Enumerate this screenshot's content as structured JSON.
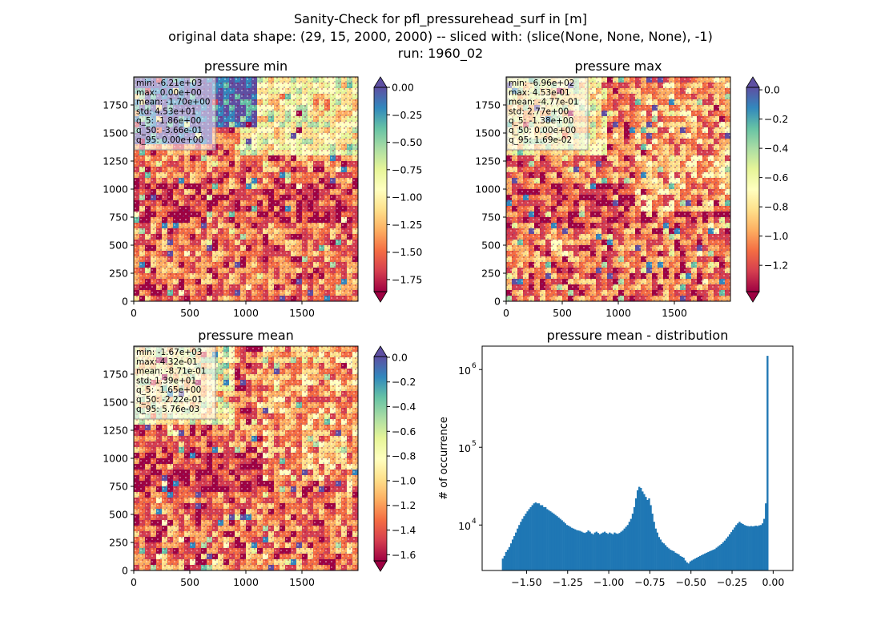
{
  "figure": {
    "title_lines": [
      "Sanity-Check for pfl_pressurehead_surf in [m]",
      "original data shape: (29, 15, 2000, 2000) -- sliced with: (slice(None, None, None), -1)",
      "run: 1960_02"
    ]
  },
  "colormap": [
    "#9e0142",
    "#d53e4f",
    "#f46d43",
    "#fdae61",
    "#fee08b",
    "#ffffbf",
    "#e6f598",
    "#abdda4",
    "#66c2a5",
    "#3288bd",
    "#5e4fa2"
  ],
  "chart_data": [
    {
      "type": "heatmap",
      "title": "pressure min",
      "x_ticks": [
        "0",
        "500",
        "1000",
        "1500"
      ],
      "y_ticks": [
        "0",
        "250",
        "500",
        "750",
        "1000",
        "1250",
        "1500",
        "1750"
      ],
      "xlim": [
        0,
        2000
      ],
      "ylim": [
        0,
        2000
      ],
      "color_range": [
        -1.86,
        0.0
      ],
      "colorbar_ticks": [
        "0.00",
        "−0.25",
        "−0.50",
        "−0.75",
        "−1.00",
        "−1.25",
        "−1.50",
        "−1.75"
      ],
      "colorbar_tick_values": [
        0.0,
        -0.25,
        -0.5,
        -0.75,
        -1.0,
        -1.25,
        -1.5,
        -1.75
      ],
      "colorbar_extend": "both",
      "stats": [
        "min: -6.21e+03",
        "max: 0.00e+00",
        "mean: -1.70e+00",
        "std: 4.53e+01",
        "q_5: -1.86e+00",
        "q_50: -3.66e-01",
        "q_95: 0.00e+00"
      ]
    },
    {
      "type": "heatmap",
      "title": "pressure max",
      "x_ticks": [
        "0",
        "500",
        "1000",
        "1500"
      ],
      "y_ticks": [
        "0",
        "250",
        "500",
        "750",
        "1000",
        "1250",
        "1500",
        "1750"
      ],
      "xlim": [
        0,
        2000
      ],
      "ylim": [
        0,
        2000
      ],
      "color_range": [
        -1.38,
        0.0169
      ],
      "colorbar_ticks": [
        "0.0",
        "−0.2",
        "−0.4",
        "−0.6",
        "−0.8",
        "−1.0",
        "−1.2"
      ],
      "colorbar_tick_values": [
        0.0,
        -0.2,
        -0.4,
        -0.6,
        -0.8,
        -1.0,
        -1.2
      ],
      "colorbar_extend": "both",
      "stats": [
        "min: -6.96e+02",
        "max: 4.53e-01",
        "mean: -4.77e-01",
        "std: 2.77e+00",
        "q_5: -1.38e+00",
        "q_50: 0.00e+00",
        "q_95: 1.69e-02"
      ]
    },
    {
      "type": "heatmap",
      "title": "pressure mean",
      "x_ticks": [
        "0",
        "500",
        "1000",
        "1500"
      ],
      "y_ticks": [
        "0",
        "250",
        "500",
        "750",
        "1000",
        "1250",
        "1500",
        "1750"
      ],
      "xlim": [
        0,
        2000
      ],
      "ylim": [
        0,
        2000
      ],
      "color_range": [
        -1.65,
        0.00576
      ],
      "colorbar_ticks": [
        "0.0",
        "−0.2",
        "−0.4",
        "−0.6",
        "−0.8",
        "−1.0",
        "−1.2",
        "−1.4",
        "−1.6"
      ],
      "colorbar_tick_values": [
        0.0,
        -0.2,
        -0.4,
        -0.6,
        -0.8,
        -1.0,
        -1.2,
        -1.4,
        -1.6
      ],
      "colorbar_extend": "both",
      "stats": [
        "min: -1.67e+03",
        "max: 4.32e-01",
        "mean: -8.71e-01",
        "std: 1.39e+01",
        "q_5: -1.65e+00",
        "q_50: -2.22e-01",
        "q_95: 5.76e-03"
      ]
    },
    {
      "type": "bar",
      "title": "pressure mean - distribution",
      "ylabel": "# of occurrence",
      "yscale": "log",
      "xlim": [
        -1.77,
        0.12
      ],
      "ylim": [
        2600,
        2000000
      ],
      "x_ticks": [
        "−1.50",
        "−1.25",
        "−1.00",
        "−0.75",
        "−0.50",
        "−0.25",
        "0.00"
      ],
      "x_tick_values": [
        -1.5,
        -1.25,
        -1.0,
        -0.75,
        -0.5,
        -0.25,
        0.0
      ],
      "y_ticks": [
        "10",
        "10",
        "10"
      ],
      "y_tick_exponents": [
        "4",
        "5",
        "6"
      ],
      "y_tick_values": [
        10000,
        100000,
        1000000
      ],
      "bar_color": "#1f77b4",
      "bin_width": 0.01,
      "bin_centers": [
        -1.645,
        -1.635,
        -1.625,
        -1.615,
        -1.605,
        -1.595,
        -1.585,
        -1.575,
        -1.565,
        -1.555,
        -1.545,
        -1.535,
        -1.525,
        -1.515,
        -1.505,
        -1.495,
        -1.485,
        -1.475,
        -1.465,
        -1.455,
        -1.445,
        -1.435,
        -1.425,
        -1.415,
        -1.405,
        -1.395,
        -1.385,
        -1.375,
        -1.365,
        -1.355,
        -1.345,
        -1.335,
        -1.325,
        -1.315,
        -1.305,
        -1.295,
        -1.285,
        -1.275,
        -1.265,
        -1.255,
        -1.245,
        -1.235,
        -1.225,
        -1.215,
        -1.205,
        -1.195,
        -1.185,
        -1.175,
        -1.165,
        -1.155,
        -1.145,
        -1.135,
        -1.125,
        -1.115,
        -1.105,
        -1.095,
        -1.085,
        -1.075,
        -1.065,
        -1.055,
        -1.045,
        -1.035,
        -1.025,
        -1.015,
        -1.005,
        -0.995,
        -0.985,
        -0.975,
        -0.965,
        -0.955,
        -0.945,
        -0.935,
        -0.925,
        -0.915,
        -0.905,
        -0.895,
        -0.885,
        -0.875,
        -0.865,
        -0.855,
        -0.845,
        -0.835,
        -0.825,
        -0.815,
        -0.805,
        -0.795,
        -0.785,
        -0.775,
        -0.765,
        -0.755,
        -0.745,
        -0.735,
        -0.725,
        -0.715,
        -0.705,
        -0.695,
        -0.685,
        -0.675,
        -0.665,
        -0.655,
        -0.645,
        -0.635,
        -0.625,
        -0.615,
        -0.605,
        -0.595,
        -0.585,
        -0.575,
        -0.565,
        -0.555,
        -0.545,
        -0.535,
        -0.525,
        -0.515,
        -0.505,
        -0.495,
        -0.485,
        -0.475,
        -0.465,
        -0.455,
        -0.445,
        -0.435,
        -0.425,
        -0.415,
        -0.405,
        -0.395,
        -0.385,
        -0.375,
        -0.365,
        -0.355,
        -0.345,
        -0.335,
        -0.325,
        -0.315,
        -0.305,
        -0.295,
        -0.285,
        -0.275,
        -0.265,
        -0.255,
        -0.245,
        -0.235,
        -0.225,
        -0.215,
        -0.205,
        -0.195,
        -0.185,
        -0.175,
        -0.165,
        -0.155,
        -0.145,
        -0.135,
        -0.125,
        -0.115,
        -0.105,
        -0.095,
        -0.085,
        -0.075,
        -0.065,
        -0.055,
        -0.045,
        -0.035,
        -0.025,
        -0.015,
        -0.005
      ],
      "counts": [
        3700,
        4000,
        4500,
        4800,
        5200,
        5800,
        6500,
        7200,
        8000,
        9000,
        10000,
        11000,
        12000,
        13000,
        14000,
        15000,
        16000,
        17000,
        18000,
        19000,
        19500,
        19000,
        19000,
        18000,
        18000,
        17000,
        17000,
        16000,
        15500,
        15000,
        14500,
        14000,
        13500,
        13000,
        12500,
        12000,
        11500,
        11000,
        10500,
        10000,
        9800,
        9500,
        9200,
        9000,
        8800,
        8600,
        8500,
        8400,
        8200,
        8000,
        7900,
        8100,
        8500,
        8200,
        7800,
        7600,
        8000,
        8200,
        7900,
        7600,
        7800,
        8000,
        8200,
        7900,
        7700,
        8000,
        7800,
        7600,
        8000,
        7800,
        7700,
        7900,
        8200,
        8500,
        9000,
        9500,
        10000,
        11000,
        12000,
        14000,
        17000,
        22000,
        28000,
        31000,
        30000,
        27000,
        25000,
        23000,
        21000,
        22000,
        18000,
        14000,
        11000,
        9000,
        8000,
        7000,
        6500,
        6000,
        5800,
        5500,
        5200,
        5000,
        4800,
        4700,
        4600,
        4400,
        4300,
        4200,
        4000,
        3900,
        3800,
        3500,
        3300,
        3200,
        3400,
        3500,
        3600,
        3700,
        3800,
        3900,
        4000,
        4100,
        4200,
        4300,
        4400,
        4500,
        4600,
        4700,
        4800,
        4900,
        5100,
        5300,
        5500,
        5700,
        6000,
        6300,
        6700,
        7100,
        7600,
        8100,
        8700,
        9300,
        10000,
        10500,
        11000,
        10600,
        10300,
        10000,
        9800,
        9700,
        9600,
        9700,
        9600,
        9700,
        9800,
        9700,
        9900,
        10000,
        10500,
        12000,
        19000,
        1500000
      ]
    }
  ]
}
